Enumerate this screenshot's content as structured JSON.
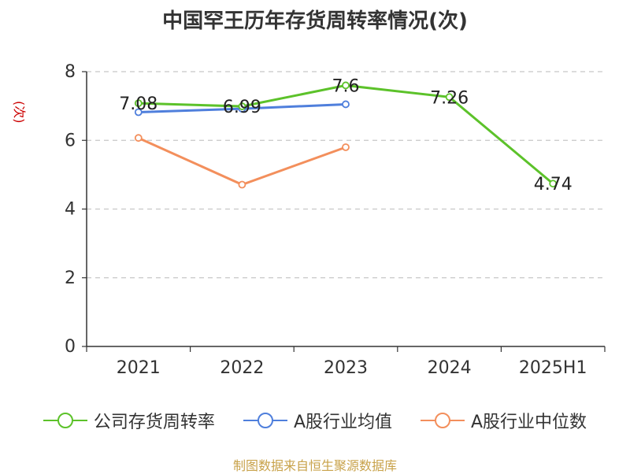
{
  "title": "中国罕王历年存货周转率情况(次)",
  "unit_label": "(次)",
  "source": "制图数据来自恒生聚源数据库",
  "chart_data": {
    "type": "line",
    "title": "中国罕王历年存货周转率情况(次)",
    "categories": [
      "2021",
      "2022",
      "2023",
      "2024",
      "2025H1"
    ],
    "ylim": [
      0,
      8
    ],
    "yticks": [
      0,
      2,
      4,
      6,
      8
    ],
    "grid": true,
    "legend_position": "bottom",
    "series": [
      {
        "name": "公司存货周转率",
        "color": "#5cc22a",
        "values": [
          7.08,
          6.99,
          7.6,
          7.26,
          4.74
        ],
        "labels": [
          "7.08",
          "6.99",
          "7.6",
          "7.26",
          "4.74"
        ]
      },
      {
        "name": "A股行业均值",
        "color": "#4f7fdc",
        "values": [
          6.82,
          6.92,
          7.05,
          null,
          null
        ]
      },
      {
        "name": "A股行业中位数",
        "color": "#f38f5c",
        "values": [
          6.07,
          4.71,
          5.8,
          null,
          null
        ]
      }
    ]
  }
}
